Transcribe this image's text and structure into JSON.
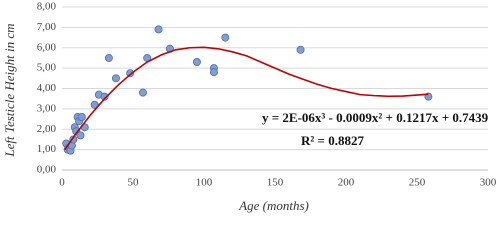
{
  "chart_data": {
    "type": "scatter",
    "x_label": "Age (months)",
    "y_label": "Left Testicle Height in cm",
    "x": [
      3,
      4,
      5,
      6,
      7,
      8,
      9,
      10,
      11,
      12,
      13,
      14,
      16,
      23,
      26,
      30,
      33,
      38,
      48,
      57,
      60,
      68,
      76,
      95,
      107,
      107,
      115,
      168,
      258
    ],
    "values": [
      1.3,
      1.0,
      1.1,
      0.95,
      1.2,
      1.5,
      2.1,
      1.9,
      2.6,
      2.4,
      1.7,
      2.6,
      2.1,
      3.2,
      3.7,
      3.6,
      5.5,
      4.5,
      4.75,
      3.8,
      5.5,
      6.9,
      5.95,
      5.3,
      5.0,
      4.8,
      6.5,
      5.9,
      3.6
    ],
    "color": "#7f9fd4",
    "trendline": {
      "equation": "y = 2E-06x³ - 0.0009x² + 0.1217x + 0.7439",
      "r_squared": "R² = 0.8827",
      "color": "#c00000",
      "x": [
        2,
        10,
        20,
        30,
        40,
        50,
        60,
        70,
        80,
        90,
        100,
        110,
        120,
        130,
        140,
        150,
        160,
        170,
        180,
        190,
        200,
        210,
        220,
        230,
        240,
        250,
        258
      ],
      "values": [
        1.0,
        1.8,
        2.7,
        3.5,
        4.2,
        4.8,
        5.3,
        5.65,
        5.9,
        6.0,
        6.02,
        5.95,
        5.8,
        5.6,
        5.3,
        5.0,
        4.7,
        4.45,
        4.2,
        4.0,
        3.85,
        3.7,
        3.65,
        3.62,
        3.63,
        3.68,
        3.72
      ]
    },
    "xlim": [
      0,
      300
    ],
    "xticks": [
      0,
      50,
      100,
      150,
      200,
      250,
      300
    ],
    "ylim": [
      0,
      8
    ],
    "yticks": [
      {
        "value": 0,
        "label": "0,00"
      },
      {
        "value": 1,
        "label": "1,00"
      },
      {
        "value": 2,
        "label": "2,00"
      },
      {
        "value": 3,
        "label": "3,00"
      },
      {
        "value": 4,
        "label": "4,00"
      },
      {
        "value": 5,
        "label": "5,00"
      },
      {
        "value": 6,
        "label": "6,00"
      },
      {
        "value": 7,
        "label": "7,00"
      },
      {
        "value": 8,
        "label": "8,00"
      }
    ],
    "grid": true
  }
}
